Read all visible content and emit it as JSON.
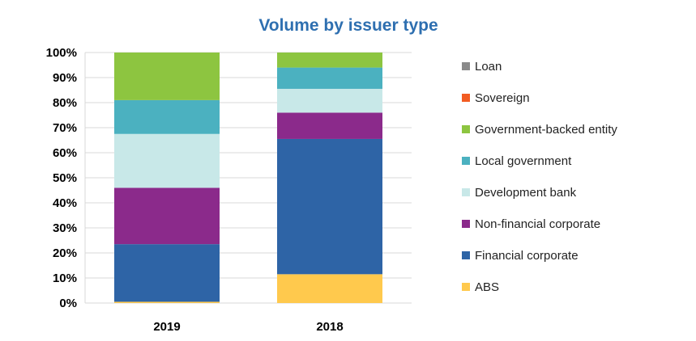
{
  "chart_data": {
    "type": "bar",
    "stacked": true,
    "percent": true,
    "title": "Volume by issuer type",
    "xlabel": "",
    "ylabel": "",
    "ylim": [
      0,
      100
    ],
    "yticks": [
      "0%",
      "10%",
      "20%",
      "30%",
      "40%",
      "50%",
      "60%",
      "70%",
      "80%",
      "90%",
      "100%"
    ],
    "grid": true,
    "legend_position": "right",
    "categories": [
      "2019",
      "2018"
    ],
    "series": [
      {
        "name": "ABS",
        "color": "#FFC94D",
        "values": [
          0.5,
          11.5
        ]
      },
      {
        "name": "Financial corporate",
        "color": "#2E64A6",
        "values": [
          23.0,
          54.0
        ]
      },
      {
        "name": "Non-financial corporate",
        "color": "#8B2A8B",
        "values": [
          22.5,
          10.5
        ]
      },
      {
        "name": "Development bank",
        "color": "#C8E8E8",
        "values": [
          21.5,
          9.5
        ]
      },
      {
        "name": "Local government",
        "color": "#4BB1C0",
        "values": [
          13.5,
          8.5
        ]
      },
      {
        "name": "Government-backed entity",
        "color": "#8DC540",
        "values": [
          19.0,
          6.0
        ]
      },
      {
        "name": "Sovereign",
        "color": "#F25C22",
        "values": [
          0,
          0
        ]
      },
      {
        "name": "Loan",
        "color": "#8A8A8A",
        "values": [
          0,
          0
        ]
      }
    ]
  }
}
